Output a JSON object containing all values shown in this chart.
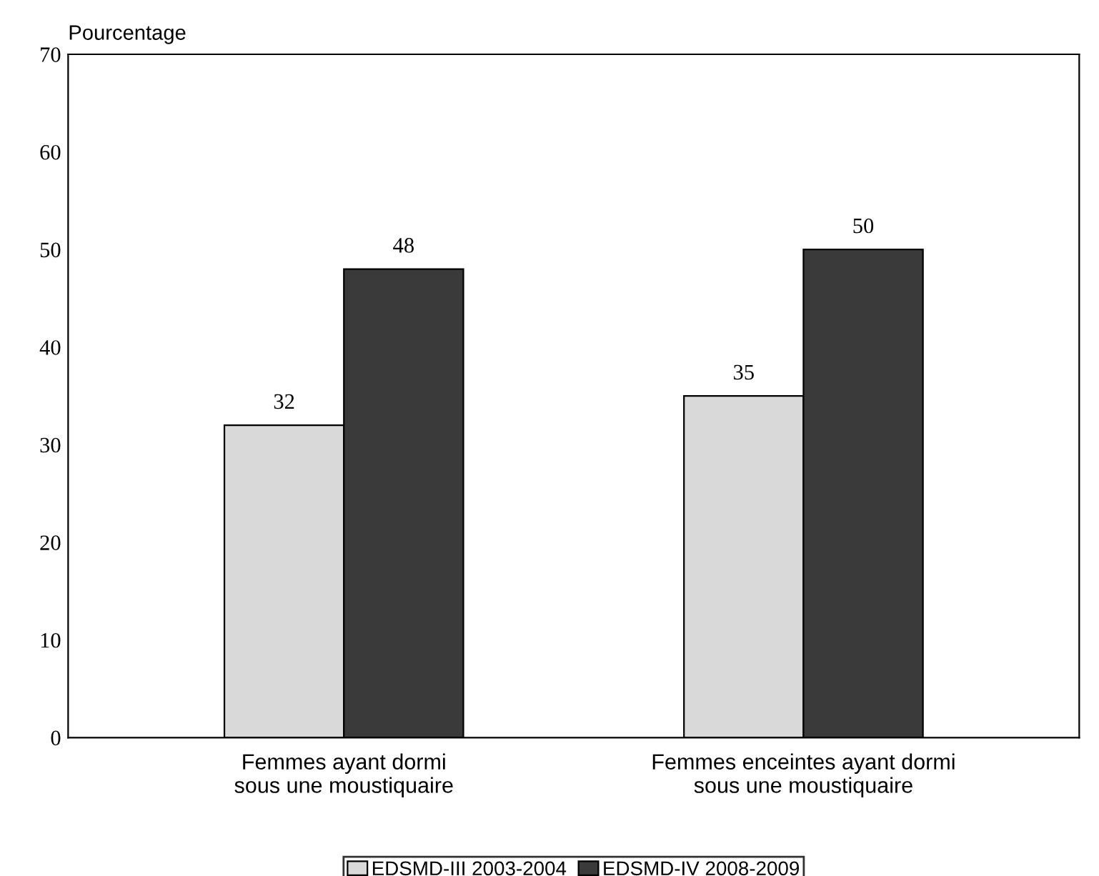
{
  "chart_data": {
    "type": "bar",
    "ylabel": "Pourcentage",
    "categories": [
      "Femmes ayant dormi\nsous une moustiquaire",
      "Femmes enceintes ayant dormi\nsous une moustiquaire"
    ],
    "series": [
      {
        "name": "EDSMD-III 2003-2004",
        "color": "#d9d9d9",
        "values": [
          32,
          35
        ]
      },
      {
        "name": "EDSMD-IV 2008-2009",
        "color": "#3a3a3a",
        "values": [
          48,
          50
        ]
      }
    ],
    "ylim": [
      0,
      70
    ],
    "yticks": [
      0,
      10,
      20,
      30,
      40,
      50,
      60,
      70
    ],
    "data_labels": true,
    "grid": false,
    "legend": "bottom"
  }
}
